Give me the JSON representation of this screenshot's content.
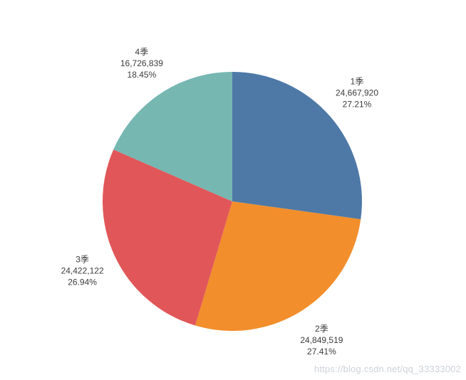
{
  "page": {
    "background": "#ffffff"
  },
  "chart_data": {
    "type": "pie",
    "title": "",
    "categories": [
      "1季",
      "2季",
      "3季",
      "4季"
    ],
    "values": [
      24667920,
      24849519,
      24422122,
      16726839
    ],
    "value_labels": [
      "24,667,920",
      "24,849,519",
      "24,422,122",
      "16,726,839"
    ],
    "percent_labels": [
      "27.21%",
      "27.41%",
      "26.94%",
      "18.45%"
    ],
    "colors": [
      "#4e79a7",
      "#f28e2b",
      "#e15759",
      "#76b7b2"
    ],
    "start_angle_deg": -90,
    "direction": "clockwise",
    "labels_outside": true,
    "legend_position": "none",
    "label_text_color": "#3c3c3c"
  },
  "watermark": {
    "text": "https://blog.csdn.net/qq_33333002",
    "color": "#cdd2d9"
  }
}
